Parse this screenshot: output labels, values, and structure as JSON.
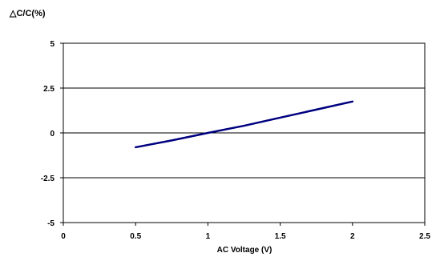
{
  "chart_data": {
    "type": "line",
    "title": "",
    "ylabel": "△C/C(%)",
    "xlabel": "AC Voltage (V)",
    "xlim": [
      0,
      2.5
    ],
    "ylim": [
      -5,
      5
    ],
    "x_ticks": [
      0,
      0.5,
      1,
      1.5,
      2,
      2.5
    ],
    "x_tick_labels": [
      "0",
      "0.5",
      "1",
      "1.5",
      "2",
      "2.5"
    ],
    "y_ticks": [
      5,
      2.5,
      0,
      -2.5,
      -5
    ],
    "y_tick_labels": [
      "5",
      "2.5",
      "0",
      "-2.5",
      "-5"
    ],
    "grid": "horizontal",
    "legend": "none",
    "series": [
      {
        "color": "#000080",
        "x": [
          0.5,
          0.75,
          1.0,
          1.25,
          1.5,
          1.75,
          2.0
        ],
        "y": [
          -0.8,
          -0.42,
          0.0,
          0.4,
          0.85,
          1.3,
          1.75
        ]
      }
    ]
  }
}
